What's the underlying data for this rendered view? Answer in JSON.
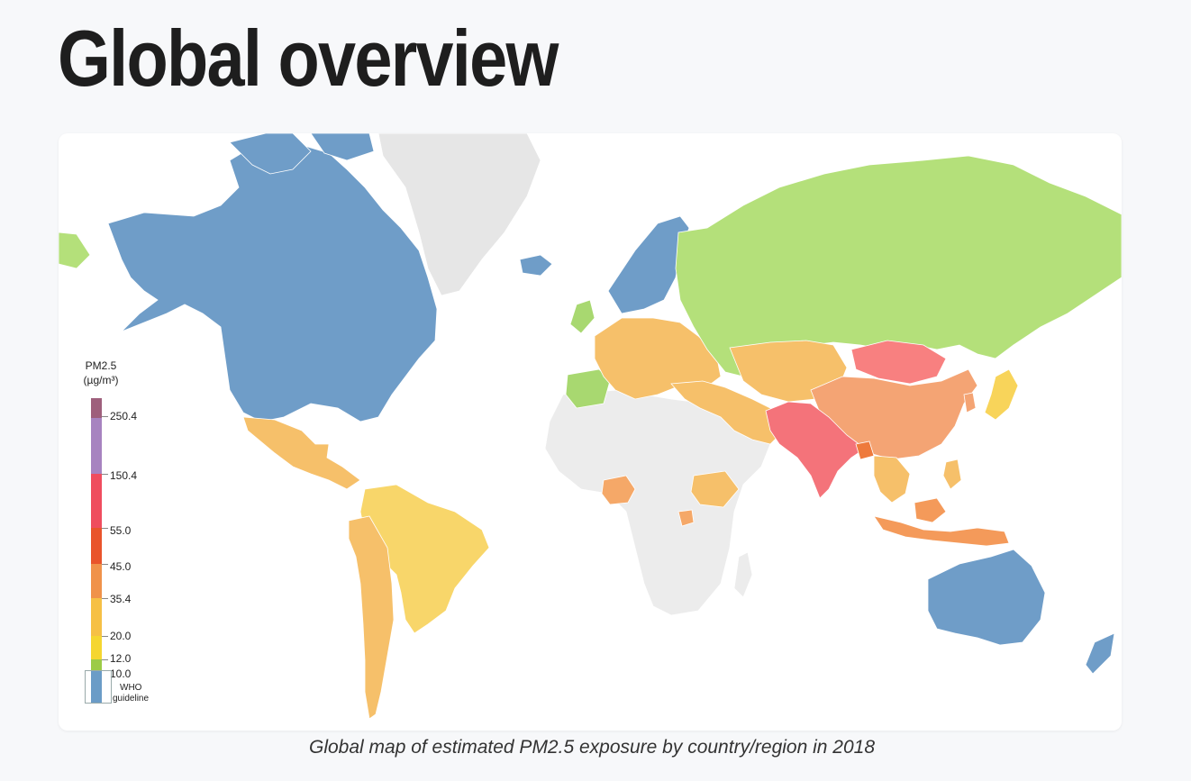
{
  "page": {
    "title": "Global overview",
    "caption": "Global map of estimated PM2.5 exposure by country/region in 2018"
  },
  "legend": {
    "title_line1": "PM2.5",
    "title_line2": "(µg/m³)",
    "labels": [
      "250.4",
      "150.4",
      "55.0",
      "45.0",
      "35.4",
      "20.0",
      "12.0",
      "10.0"
    ],
    "who_line1": "WHO",
    "who_line2": "guideline",
    "colors": {
      "above_250": "#9e5f7c",
      "r150_250": "#a783c0",
      "r55_150": "#ef4d5e",
      "r45_55": "#e9542b",
      "r35_45": "#f0924a",
      "r20_35": "#f6c045",
      "r12_20": "#f5d630",
      "r10_12": "#9ccb47",
      "below_10": "#6b9cc7"
    }
  },
  "map": {
    "no_data_color": "#ececec",
    "region_colors": {
      "north_america": "#6f9dc8",
      "greenland": "#e6e6e6",
      "mexico": "#f6c06a",
      "south_america": "#f8d66a",
      "peru_chile": "#f6c06a",
      "africa_no_data": "#ececec",
      "nigeria_uganda": "#f5a868",
      "ethiopia": "#f6c06a",
      "europe": "#f6c06a",
      "iberia_ireland": "#a8d870",
      "scandinavia": "#6f9dc8",
      "russia": "#b4e07a",
      "central_asia": "#f6c06a",
      "middle_east": "#f6c06a",
      "china": "#f4a474",
      "mongolia": "#f88080",
      "south_asia": "#f4737a",
      "bangladesh": "#ee7a3c",
      "japan": "#f8d45a",
      "southeast_asia": "#f6c06a",
      "indonesia": "#f49a5a",
      "australia": "#6f9dc8",
      "new_zealand": "#6f9dc8"
    }
  }
}
